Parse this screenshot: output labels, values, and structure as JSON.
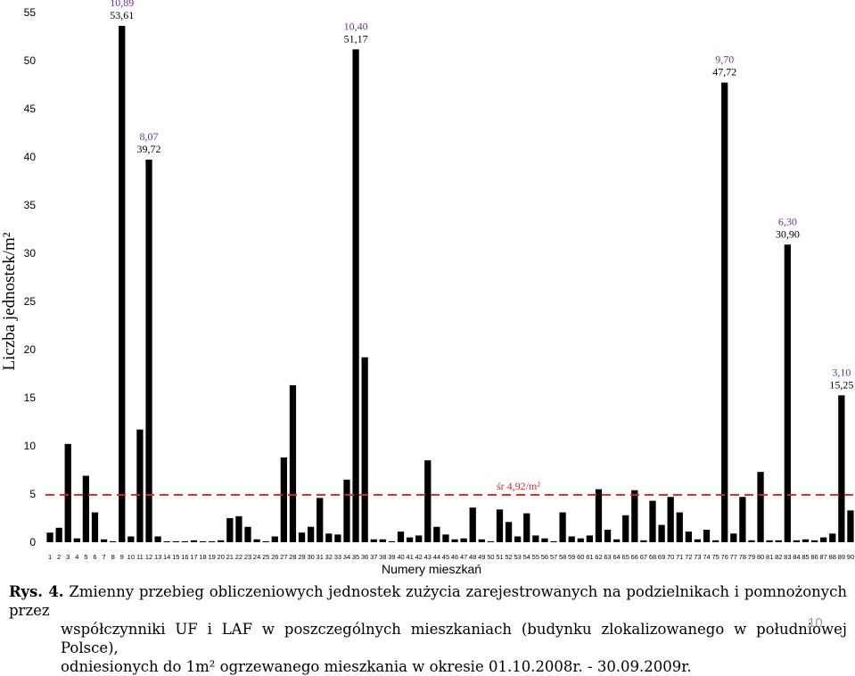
{
  "chart_data": {
    "type": "bar",
    "categories": [
      "1",
      "2",
      "3",
      "4",
      "5",
      "6",
      "7",
      "8",
      "9",
      "10",
      "11",
      "12",
      "13",
      "14",
      "15",
      "16",
      "17",
      "18",
      "19",
      "20",
      "21",
      "22",
      "23",
      "24",
      "25",
      "26",
      "27",
      "28",
      "29",
      "30",
      "31",
      "32",
      "33",
      "34",
      "35",
      "36",
      "37",
      "38",
      "39",
      "40",
      "41",
      "42",
      "43",
      "44",
      "45",
      "46",
      "47",
      "48",
      "49",
      "50",
      "51",
      "52",
      "53",
      "54",
      "55",
      "56",
      "57",
      "58",
      "59",
      "60",
      "61",
      "62",
      "63",
      "64",
      "65",
      "66",
      "67",
      "68",
      "69",
      "70",
      "71",
      "72",
      "73",
      "74",
      "75",
      "76",
      "77",
      "78",
      "79",
      "80",
      "81",
      "82",
      "83",
      "84",
      "85",
      "86",
      "87",
      "88",
      "89",
      "90"
    ],
    "values": [
      1.0,
      1.5,
      10.2,
      0.4,
      6.9,
      3.1,
      0.3,
      0.1,
      53.61,
      0.6,
      11.7,
      39.72,
      0.6,
      0.1,
      0.1,
      0.1,
      0.2,
      0.1,
      0.1,
      0.2,
      2.5,
      2.7,
      1.6,
      0.3,
      0.1,
      0.6,
      8.8,
      16.3,
      1.0,
      1.6,
      4.6,
      0.9,
      0.8,
      6.5,
      51.17,
      19.2,
      0.3,
      0.3,
      0.1,
      1.1,
      0.5,
      0.7,
      8.5,
      1.6,
      0.8,
      0.3,
      0.4,
      3.6,
      0.3,
      0.1,
      3.4,
      2.1,
      0.6,
      3.0,
      0.7,
      0.4,
      0.1,
      3.1,
      0.6,
      0.4,
      0.7,
      5.5,
      1.3,
      0.3,
      2.8,
      5.4,
      0.2,
      4.3,
      1.8,
      4.7,
      3.1,
      1.1,
      0.3,
      1.3,
      0.2,
      47.72,
      0.9,
      4.7,
      0.2,
      7.3,
      0.2,
      0.2,
      30.9,
      0.2,
      0.3,
      0.2,
      0.5,
      0.9,
      15.25,
      3.3
    ],
    "ylabel": "Liczba jednostek/m²",
    "xlabel": "Numery mieszkań",
    "ylim": [
      0,
      55
    ],
    "yticks": [
      "0",
      "5",
      "10",
      "15",
      "20",
      "25",
      "30",
      "35",
      "40",
      "45",
      "50",
      "55"
    ],
    "grid": false,
    "bar_color": "#000000",
    "mean_line": {
      "value": 4.92,
      "label": "śr 4,92/m²",
      "color": "#d42a2a"
    },
    "annotations": [
      {
        "category": "9",
        "top": "10,89",
        "bottom": "53,61"
      },
      {
        "category": "12",
        "top": "8,07",
        "bottom": "39,72"
      },
      {
        "category": "35",
        "top": "10,40",
        "bottom": "51,17"
      },
      {
        "category": "76",
        "top": "9,70",
        "bottom": "47,72"
      },
      {
        "category": "83",
        "top": "6,30",
        "bottom": "30,90"
      },
      {
        "category": "89",
        "top": "3,10",
        "bottom": "15,25"
      }
    ],
    "annotation_top_color": "#7030a0"
  },
  "caption": {
    "label": "Rys. 4.",
    "line1": " Zmienny przebieg obliczeniowych jednostek zużycia zarejestrowanych na podzielnikach i pomnożonych przez",
    "line2": "współczynniki UF i LAF w poszczególnych mieszkaniach (budynku zlokalizowanego w południowej Polsce),",
    "line3": "odniesionych do 1m² ogrzewanego mieszkania w okresie 01.10.2008r. - 30.09.2009r."
  },
  "page_number": "10"
}
